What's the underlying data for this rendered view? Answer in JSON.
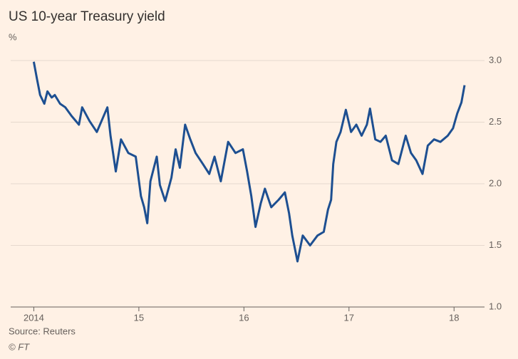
{
  "chart_data": {
    "type": "line",
    "title": "US 10-year Treasury yield",
    "subtitle": "%",
    "source": "Source: Reuters",
    "credit": "© FT",
    "x": [
      2014.0,
      2014.03,
      2014.06,
      2014.1,
      2014.13,
      2014.17,
      2014.2,
      2014.25,
      2014.3,
      2014.36,
      2014.43,
      2014.46,
      2014.53,
      2014.6,
      2014.7,
      2014.73,
      2014.78,
      2014.83,
      2014.9,
      2014.97,
      2015.02,
      2015.05,
      2015.08,
      2015.11,
      2015.17,
      2015.2,
      2015.25,
      2015.31,
      2015.35,
      2015.39,
      2015.44,
      2015.49,
      2015.54,
      2015.61,
      2015.67,
      2015.72,
      2015.78,
      2015.85,
      2015.92,
      2015.99,
      2016.03,
      2016.07,
      2016.11,
      2016.16,
      2016.2,
      2016.26,
      2016.33,
      2016.39,
      2016.43,
      2016.46,
      2016.51,
      2016.56,
      2016.63,
      2016.7,
      2016.76,
      2016.8,
      2016.83,
      2016.85,
      2016.88,
      2016.92,
      2016.97,
      2017.02,
      2017.07,
      2017.12,
      2017.17,
      2017.2,
      2017.25,
      2017.3,
      2017.35,
      2017.41,
      2017.47,
      2017.54,
      2017.59,
      2017.64,
      2017.7,
      2017.75,
      2017.81,
      2017.87,
      2017.94,
      2017.99,
      2018.03,
      2018.07,
      2018.1
    ],
    "values": [
      2.99,
      2.85,
      2.72,
      2.65,
      2.75,
      2.7,
      2.72,
      2.65,
      2.62,
      2.55,
      2.48,
      2.62,
      2.51,
      2.42,
      2.62,
      2.39,
      2.1,
      2.36,
      2.25,
      2.22,
      1.9,
      1.81,
      1.68,
      2.02,
      2.22,
      1.99,
      1.86,
      2.05,
      2.28,
      2.13,
      2.48,
      2.36,
      2.25,
      2.16,
      2.08,
      2.22,
      2.02,
      2.34,
      2.25,
      2.28,
      2.1,
      1.9,
      1.65,
      1.84,
      1.96,
      1.81,
      1.87,
      1.93,
      1.76,
      1.58,
      1.37,
      1.58,
      1.5,
      1.58,
      1.61,
      1.79,
      1.87,
      2.16,
      2.34,
      2.42,
      2.6,
      2.42,
      2.48,
      2.39,
      2.48,
      2.61,
      2.36,
      2.34,
      2.39,
      2.19,
      2.16,
      2.39,
      2.25,
      2.19,
      2.08,
      2.31,
      2.36,
      2.34,
      2.39,
      2.45,
      2.57,
      2.66,
      2.8
    ],
    "color": "#1d4f91",
    "xlim": [
      2013.78,
      2018.29
    ],
    "xticks": [
      {
        "value": 2014,
        "label": "2014"
      },
      {
        "value": 2015,
        "label": "15"
      },
      {
        "value": 2016,
        "label": "16"
      },
      {
        "value": 2017,
        "label": "17"
      },
      {
        "value": 2018,
        "label": "18"
      }
    ],
    "ylim": [
      1.0,
      3.0
    ],
    "yticks": [
      {
        "value": 1.0,
        "label": "1.0"
      },
      {
        "value": 1.5,
        "label": "1.5"
      },
      {
        "value": 2.0,
        "label": "2.0"
      },
      {
        "value": 2.5,
        "label": "2.5"
      },
      {
        "value": 3.0,
        "label": "3.0"
      }
    ],
    "grid": true
  }
}
